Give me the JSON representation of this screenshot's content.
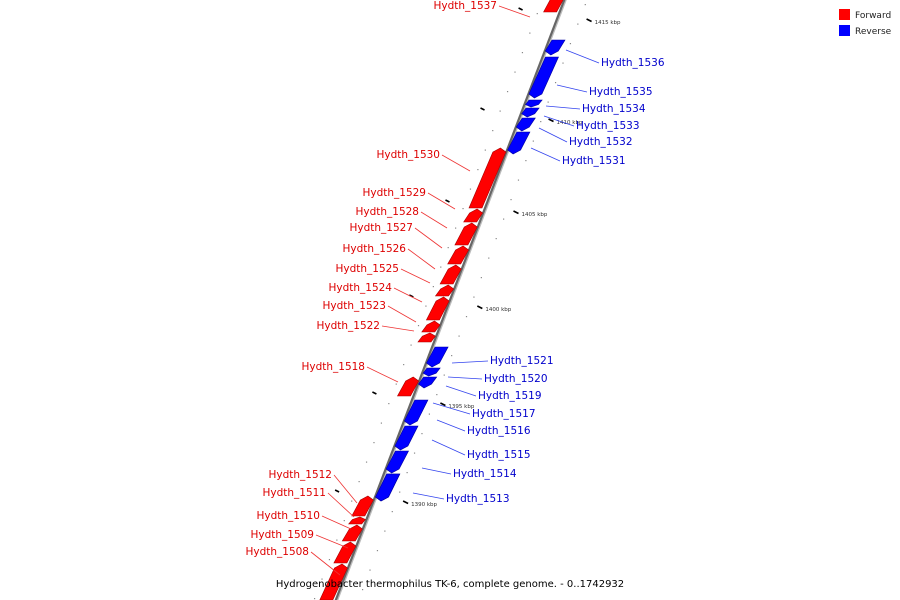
{
  "colors": {
    "forward": "#ff0000",
    "reverse": "#0000ff",
    "forward_label": "#dd0000",
    "reverse_label": "#0000cc",
    "backbone": "#888888"
  },
  "legend": {
    "forward_label": "Forward",
    "reverse_label": "Reverse"
  },
  "caption": "Hydrogenobacter thermophilus TK-6, complete genome. - 0..1742932",
  "kbp_marks": [
    {
      "label": "1415 kbp"
    },
    {
      "label": "1410 kbp"
    },
    {
      "label": "1405 kbp"
    },
    {
      "label": "1400 kbp"
    },
    {
      "label": "1395 kbp"
    },
    {
      "label": "1390 kbp"
    }
  ],
  "genes": [
    {
      "name": "Hydth_1537",
      "strand": "forward"
    },
    {
      "name": "Hydth_1536",
      "strand": "reverse"
    },
    {
      "name": "Hydth_1535",
      "strand": "reverse"
    },
    {
      "name": "Hydth_1534",
      "strand": "reverse"
    },
    {
      "name": "Hydth_1533",
      "strand": "reverse"
    },
    {
      "name": "Hydth_1532",
      "strand": "reverse"
    },
    {
      "name": "Hydth_1531",
      "strand": "reverse"
    },
    {
      "name": "Hydth_1530",
      "strand": "forward"
    },
    {
      "name": "Hydth_1529",
      "strand": "forward"
    },
    {
      "name": "Hydth_1528",
      "strand": "forward"
    },
    {
      "name": "Hydth_1527",
      "strand": "forward"
    },
    {
      "name": "Hydth_1526",
      "strand": "forward"
    },
    {
      "name": "Hydth_1525",
      "strand": "forward"
    },
    {
      "name": "Hydth_1524",
      "strand": "forward"
    },
    {
      "name": "Hydth_1523",
      "strand": "forward"
    },
    {
      "name": "Hydth_1522",
      "strand": "forward"
    },
    {
      "name": "Hydth_1521",
      "strand": "reverse"
    },
    {
      "name": "Hydth_1520",
      "strand": "reverse"
    },
    {
      "name": "Hydth_1519",
      "strand": "reverse"
    },
    {
      "name": "Hydth_1518",
      "strand": "forward"
    },
    {
      "name": "Hydth_1517",
      "strand": "reverse"
    },
    {
      "name": "Hydth_1516",
      "strand": "reverse"
    },
    {
      "name": "Hydth_1515",
      "strand": "reverse"
    },
    {
      "name": "Hydth_1514",
      "strand": "reverse"
    },
    {
      "name": "Hydth_1513",
      "strand": "reverse"
    },
    {
      "name": "Hydth_1512",
      "strand": "forward"
    },
    {
      "name": "Hydth_1511",
      "strand": "forward"
    },
    {
      "name": "Hydth_1510",
      "strand": "forward"
    },
    {
      "name": "Hydth_1509",
      "strand": "forward"
    },
    {
      "name": "Hydth_1508",
      "strand": "forward"
    }
  ]
}
